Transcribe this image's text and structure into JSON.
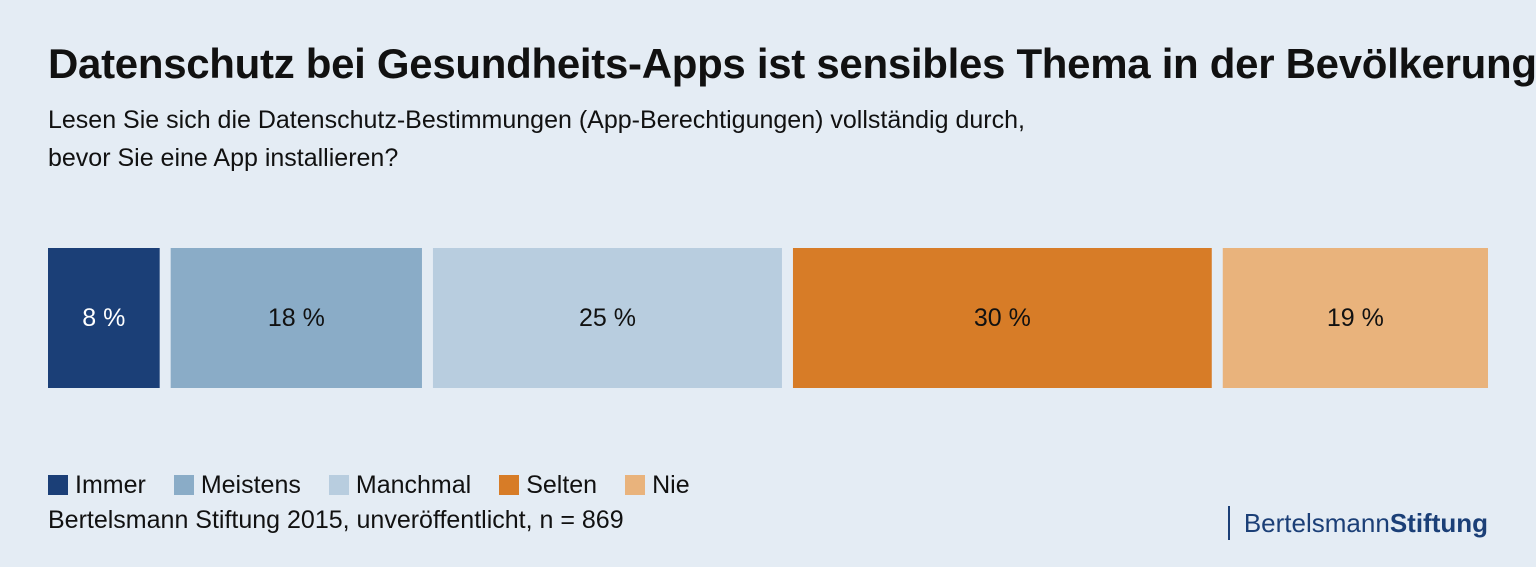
{
  "header": {
    "title": "Datenschutz bei Gesundheits-Apps ist sensibles Thema in der Bevölkerung",
    "subtitle_line1": "Lesen Sie sich die Datenschutz-Bestimmungen (App-Berechtigungen) vollständig durch,",
    "subtitle_line2": "bevor Sie eine App installieren?"
  },
  "chart_data": {
    "type": "bar",
    "orientation": "horizontal-stacked",
    "title": "Datenschutz bei Gesundheits-Apps ist sensibles Thema in der Bevölkerung",
    "subtitle": "Lesen Sie sich die Datenschutz-Bestimmungen (App-Berechtigungen) vollständig durch, bevor Sie eine App installieren?",
    "categories": [
      "Immer",
      "Meistens",
      "Manchmal",
      "Selten",
      "Nie"
    ],
    "values": [
      8,
      18,
      25,
      30,
      19
    ],
    "labels": [
      "8 %",
      "18 %",
      "25 %",
      "30 %",
      "19 %"
    ],
    "unit": "%",
    "colors": [
      "#1b3f77",
      "#8aacc7",
      "#b8cddf",
      "#d77c27",
      "#e9b37c"
    ],
    "label_colors": [
      "#ffffff",
      "#111111",
      "#111111",
      "#111111",
      "#111111"
    ],
    "xlabel": "",
    "ylabel": "",
    "legend_position": "bottom-left"
  },
  "legend": {
    "items": [
      "Immer",
      "Meistens",
      "Manchmal",
      "Selten",
      "Nie"
    ]
  },
  "footer": {
    "source": "Bertelsmann Stiftung 2015, unveröffentlicht, n = 869",
    "logo_regular": "Bertelsmann",
    "logo_bold": "Stiftung"
  }
}
